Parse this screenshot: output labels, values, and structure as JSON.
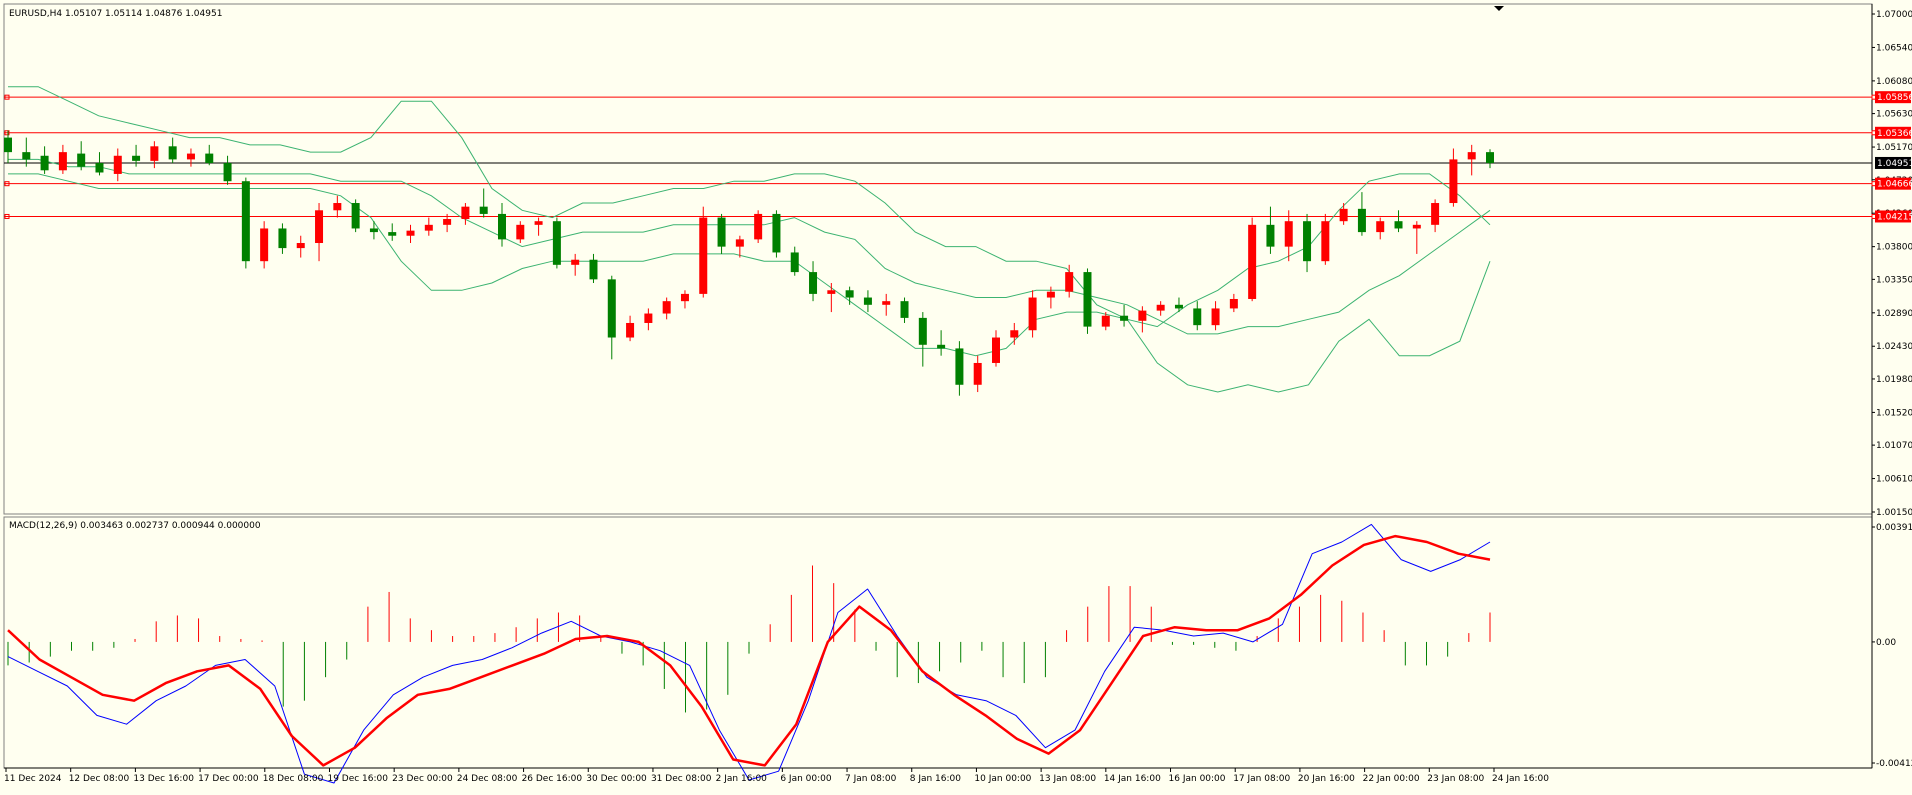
{
  "chart_data": [
    {
      "type": "candlestick",
      "panel": "price",
      "symbol_header": "EURUSD,H4  1.05107 1.05114 1.04876 1.04951",
      "ylim": [
        1.0015,
        1.07
      ],
      "yticks": [
        "1.07000",
        "1.06540",
        "1.06080",
        "1.05630",
        "1.05170",
        "1.04720",
        "1.04260",
        "1.03800",
        "1.03350",
        "1.02890",
        "1.02430",
        "1.01980",
        "1.01520",
        "1.01070",
        "1.00610",
        "1.00150"
      ],
      "current_price": {
        "label": "1.04951",
        "value": 1.04951,
        "color": "#000000"
      },
      "horizontal_lines": [
        {
          "label": "1.05856",
          "value": 1.05856,
          "color": "#ff0000"
        },
        {
          "label": "1.05366",
          "value": 1.05366,
          "color": "#ff0000"
        },
        {
          "label": "1.04666",
          "value": 1.04666,
          "color": "#ff0000"
        },
        {
          "label": "1.04215",
          "value": 1.04215,
          "color": "#ff0000"
        }
      ],
      "bollinger": {
        "color": "#3cb371",
        "upper": [
          1.06,
          1.06,
          1.058,
          1.056,
          1.055,
          1.054,
          1.053,
          1.053,
          1.052,
          1.052,
          1.051,
          1.051,
          1.053,
          1.058,
          1.058,
          1.053,
          1.046,
          1.043,
          1.042,
          1.044,
          1.044,
          1.045,
          1.046,
          1.046,
          1.047,
          1.047,
          1.048,
          1.048,
          1.047,
          1.044,
          1.04,
          1.038,
          1.038,
          1.036,
          1.036,
          1.035,
          1.03,
          1.028,
          1.027,
          1.03,
          1.032,
          1.035,
          1.036,
          1.038,
          1.043,
          1.047,
          1.048,
          1.048,
          1.045,
          1.041
        ],
        "middle": [
          1.05,
          1.05,
          1.049,
          1.049,
          1.048,
          1.048,
          1.048,
          1.048,
          1.048,
          1.048,
          1.048,
          1.047,
          1.047,
          1.047,
          1.045,
          1.042,
          1.04,
          1.038,
          1.039,
          1.04,
          1.04,
          1.04,
          1.041,
          1.041,
          1.041,
          1.041,
          1.042,
          1.04,
          1.039,
          1.035,
          1.033,
          1.032,
          1.031,
          1.031,
          1.032,
          1.032,
          1.031,
          1.03,
          1.028,
          1.026,
          1.026,
          1.027,
          1.027,
          1.028,
          1.029,
          1.032,
          1.034,
          1.037,
          1.04,
          1.043
        ],
        "lower": [
          1.048,
          1.048,
          1.047,
          1.046,
          1.046,
          1.046,
          1.046,
          1.046,
          1.046,
          1.046,
          1.046,
          1.045,
          1.042,
          1.036,
          1.032,
          1.032,
          1.033,
          1.035,
          1.036,
          1.036,
          1.036,
          1.036,
          1.037,
          1.037,
          1.037,
          1.036,
          1.036,
          1.033,
          1.03,
          1.027,
          1.024,
          1.024,
          1.023,
          1.024,
          1.028,
          1.029,
          1.029,
          1.028,
          1.022,
          1.019,
          1.018,
          1.019,
          1.018,
          1.019,
          1.025,
          1.028,
          1.023,
          1.023,
          1.025,
          1.036
        ]
      },
      "candles": [
        {
          "o": 1.053,
          "h": 1.054,
          "l": 1.0495,
          "c": 1.051
        },
        {
          "o": 1.051,
          "h": 1.053,
          "l": 1.049,
          "c": 1.05
        },
        {
          "o": 1.0505,
          "h": 1.0518,
          "l": 1.048,
          "c": 1.0485
        },
        {
          "o": 1.0485,
          "h": 1.052,
          "l": 1.048,
          "c": 1.051
        },
        {
          "o": 1.0508,
          "h": 1.0525,
          "l": 1.0485,
          "c": 1.049
        },
        {
          "o": 1.0495,
          "h": 1.051,
          "l": 1.0478,
          "c": 1.0482
        },
        {
          "o": 1.048,
          "h": 1.0515,
          "l": 1.047,
          "c": 1.0505
        },
        {
          "o": 1.0505,
          "h": 1.052,
          "l": 1.049,
          "c": 1.0498
        },
        {
          "o": 1.0498,
          "h": 1.0525,
          "l": 1.0488,
          "c": 1.0518
        },
        {
          "o": 1.0518,
          "h": 1.053,
          "l": 1.0495,
          "c": 1.05
        },
        {
          "o": 1.05,
          "h": 1.0515,
          "l": 1.049,
          "c": 1.0508
        },
        {
          "o": 1.0508,
          "h": 1.052,
          "l": 1.0492,
          "c": 1.0495
        },
        {
          "o": 1.0495,
          "h": 1.0505,
          "l": 1.0465,
          "c": 1.047
        },
        {
          "o": 1.047,
          "h": 1.0475,
          "l": 1.035,
          "c": 1.036
        },
        {
          "o": 1.036,
          "h": 1.0415,
          "l": 1.035,
          "c": 1.0405
        },
        {
          "o": 1.0405,
          "h": 1.0412,
          "l": 1.037,
          "c": 1.0378
        },
        {
          "o": 1.0378,
          "h": 1.0395,
          "l": 1.0365,
          "c": 1.0385
        },
        {
          "o": 1.0385,
          "h": 1.044,
          "l": 1.036,
          "c": 1.043
        },
        {
          "o": 1.043,
          "h": 1.045,
          "l": 1.042,
          "c": 1.044
        },
        {
          "o": 1.044,
          "h": 1.0445,
          "l": 1.04,
          "c": 1.0405
        },
        {
          "o": 1.0405,
          "h": 1.0415,
          "l": 1.039,
          "c": 1.04
        },
        {
          "o": 1.04,
          "h": 1.0412,
          "l": 1.0388,
          "c": 1.0395
        },
        {
          "o": 1.0395,
          "h": 1.041,
          "l": 1.0385,
          "c": 1.0402
        },
        {
          "o": 1.0402,
          "h": 1.042,
          "l": 1.0395,
          "c": 1.041
        },
        {
          "o": 1.041,
          "h": 1.0425,
          "l": 1.04,
          "c": 1.0418
        },
        {
          "o": 1.0418,
          "h": 1.044,
          "l": 1.041,
          "c": 1.0435
        },
        {
          "o": 1.0435,
          "h": 1.046,
          "l": 1.042,
          "c": 1.0425
        },
        {
          "o": 1.0425,
          "h": 1.044,
          "l": 1.038,
          "c": 1.039
        },
        {
          "o": 1.039,
          "h": 1.0415,
          "l": 1.0385,
          "c": 1.041
        },
        {
          "o": 1.041,
          "h": 1.042,
          "l": 1.0395,
          "c": 1.0415
        },
        {
          "o": 1.0415,
          "h": 1.042,
          "l": 1.035,
          "c": 1.0355
        },
        {
          "o": 1.0355,
          "h": 1.037,
          "l": 1.034,
          "c": 1.0362
        },
        {
          "o": 1.0362,
          "h": 1.037,
          "l": 1.033,
          "c": 1.0335
        },
        {
          "o": 1.0335,
          "h": 1.034,
          "l": 1.0225,
          "c": 1.0255
        },
        {
          "o": 1.0255,
          "h": 1.0285,
          "l": 1.025,
          "c": 1.0275
        },
        {
          "o": 1.0275,
          "h": 1.0295,
          "l": 1.0265,
          "c": 1.0288
        },
        {
          "o": 1.0288,
          "h": 1.031,
          "l": 1.028,
          "c": 1.0305
        },
        {
          "o": 1.0305,
          "h": 1.032,
          "l": 1.0295,
          "c": 1.0315
        },
        {
          "o": 1.0315,
          "h": 1.0435,
          "l": 1.031,
          "c": 1.042
        },
        {
          "o": 1.042,
          "h": 1.0425,
          "l": 1.037,
          "c": 1.038
        },
        {
          "o": 1.038,
          "h": 1.0395,
          "l": 1.0365,
          "c": 1.039
        },
        {
          "o": 1.039,
          "h": 1.043,
          "l": 1.0385,
          "c": 1.0425
        },
        {
          "o": 1.0425,
          "h": 1.043,
          "l": 1.0365,
          "c": 1.0372
        },
        {
          "o": 1.0372,
          "h": 1.038,
          "l": 1.034,
          "c": 1.0345
        },
        {
          "o": 1.0345,
          "h": 1.036,
          "l": 1.0305,
          "c": 1.0315
        },
        {
          "o": 1.0315,
          "h": 1.033,
          "l": 1.029,
          "c": 1.032
        },
        {
          "o": 1.032,
          "h": 1.0325,
          "l": 1.03,
          "c": 1.031
        },
        {
          "o": 1.031,
          "h": 1.032,
          "l": 1.029,
          "c": 1.03
        },
        {
          "o": 1.03,
          "h": 1.0315,
          "l": 1.0285,
          "c": 1.0305
        },
        {
          "o": 1.0305,
          "h": 1.031,
          "l": 1.0275,
          "c": 1.0282
        },
        {
          "o": 1.0282,
          "h": 1.029,
          "l": 1.0215,
          "c": 1.0245
        },
        {
          "o": 1.0245,
          "h": 1.0265,
          "l": 1.023,
          "c": 1.024
        },
        {
          "o": 1.024,
          "h": 1.025,
          "l": 1.0175,
          "c": 1.019
        },
        {
          "o": 1.019,
          "h": 1.023,
          "l": 1.018,
          "c": 1.022
        },
        {
          "o": 1.022,
          "h": 1.0265,
          "l": 1.0215,
          "c": 1.0255
        },
        {
          "o": 1.0255,
          "h": 1.0275,
          "l": 1.0245,
          "c": 1.0265
        },
        {
          "o": 1.0265,
          "h": 1.032,
          "l": 1.0255,
          "c": 1.031
        },
        {
          "o": 1.031,
          "h": 1.0325,
          "l": 1.0295,
          "c": 1.0318
        },
        {
          "o": 1.0318,
          "h": 1.0355,
          "l": 1.031,
          "c": 1.0345
        },
        {
          "o": 1.0345,
          "h": 1.035,
          "l": 1.026,
          "c": 1.027
        },
        {
          "o": 1.027,
          "h": 1.029,
          "l": 1.0265,
          "c": 1.0285
        },
        {
          "o": 1.0285,
          "h": 1.03,
          "l": 1.027,
          "c": 1.0278
        },
        {
          "o": 1.0278,
          "h": 1.0298,
          "l": 1.0262,
          "c": 1.0292
        },
        {
          "o": 1.0292,
          "h": 1.0305,
          "l": 1.0285,
          "c": 1.03
        },
        {
          "o": 1.03,
          "h": 1.031,
          "l": 1.029,
          "c": 1.0295
        },
        {
          "o": 1.0295,
          "h": 1.0305,
          "l": 1.0265,
          "c": 1.0272
        },
        {
          "o": 1.0272,
          "h": 1.0305,
          "l": 1.0265,
          "c": 1.0295
        },
        {
          "o": 1.0295,
          "h": 1.0315,
          "l": 1.029,
          "c": 1.0308
        },
        {
          "o": 1.0308,
          "h": 1.042,
          "l": 1.0305,
          "c": 1.041
        },
        {
          "o": 1.041,
          "h": 1.0435,
          "l": 1.037,
          "c": 1.038
        },
        {
          "o": 1.038,
          "h": 1.043,
          "l": 1.036,
          "c": 1.0415
        },
        {
          "o": 1.0415,
          "h": 1.0425,
          "l": 1.0345,
          "c": 1.036
        },
        {
          "o": 1.036,
          "h": 1.0425,
          "l": 1.0355,
          "c": 1.0415
        },
        {
          "o": 1.0415,
          "h": 1.044,
          "l": 1.041,
          "c": 1.0432
        },
        {
          "o": 1.0432,
          "h": 1.0455,
          "l": 1.0395,
          "c": 1.04
        },
        {
          "o": 1.04,
          "h": 1.042,
          "l": 1.039,
          "c": 1.0415
        },
        {
          "o": 1.0415,
          "h": 1.043,
          "l": 1.04,
          "c": 1.0405
        },
        {
          "o": 1.0405,
          "h": 1.0415,
          "l": 1.037,
          "c": 1.041
        },
        {
          "o": 1.041,
          "h": 1.0445,
          "l": 1.04,
          "c": 1.044
        },
        {
          "o": 1.044,
          "h": 1.0515,
          "l": 1.0435,
          "c": 1.05
        },
        {
          "o": 1.05,
          "h": 1.052,
          "l": 1.0478,
          "c": 1.051
        },
        {
          "o": 1.051,
          "h": 1.0514,
          "l": 1.0488,
          "c": 1.0495
        }
      ]
    },
    {
      "type": "macd",
      "panel": "indicator",
      "header": "MACD(12,26,9) 0.003463 0.002737 0.000944 0.000000",
      "ylim": [
        -0.00412,
        0.00391
      ],
      "yticks": [
        "0.00391",
        "0.00",
        "-0.00412"
      ],
      "histogram_colors": {
        "up": "#ff0000",
        "down": "#008000"
      },
      "macd_color": "#0000ff",
      "signal_color": "#ff0000",
      "histogram": [
        -0.0008,
        -0.0007,
        -0.0005,
        -0.0003,
        -0.0003,
        -0.0002,
        0.0001,
        0.0007,
        0.0009,
        0.0008,
        0.0002,
        0.0001,
        5e-05,
        -0.0022,
        -0.002,
        -0.0012,
        -0.0006,
        0.0012,
        0.0017,
        0.0008,
        0.0004,
        0.0002,
        0.0002,
        0.0003,
        0.0005,
        0.0008,
        0.001,
        0.0009,
        0.0002,
        -0.0004,
        -0.0008,
        -0.0016,
        -0.0024,
        -0.0023,
        -0.0018,
        -0.0004,
        0.0006,
        0.0016,
        0.0026,
        0.002,
        0.0011,
        -0.0003,
        -0.0012,
        -0.0014,
        -0.001,
        -0.0007,
        -0.0003,
        -0.0012,
        -0.0014,
        -0.0012,
        0.0004,
        0.0012,
        0.0019,
        0.0019,
        0.0012,
        -0.0001,
        -0.0001,
        -0.0002,
        -0.0003,
        0.0002,
        0.0008,
        0.0012,
        0.0016,
        0.0014,
        0.001,
        0.0004,
        -0.0008,
        -0.0008,
        -0.0005,
        0.0003,
        0.001
      ],
      "macd": [
        -0.0005,
        -0.001,
        -0.0015,
        -0.0025,
        -0.0028,
        -0.002,
        -0.0015,
        -0.0008,
        -0.0006,
        -0.0015,
        -0.0045,
        -0.0048,
        -0.003,
        -0.0018,
        -0.0012,
        -0.0008,
        -0.0006,
        -0.0002,
        0.0003,
        0.0007,
        0.0002,
        0.0,
        -0.0003,
        -0.0008,
        -0.003,
        -0.0047,
        -0.0044,
        -0.002,
        0.001,
        0.0018,
        0.0002,
        -0.0012,
        -0.0018,
        -0.002,
        -0.0025,
        -0.0036,
        -0.003,
        -0.001,
        0.0005,
        0.0004,
        0.0002,
        0.0003,
        0.0,
        0.0006,
        0.003,
        0.0034,
        0.004,
        0.0028,
        0.0024,
        0.0028,
        0.0034
      ],
      "signal": [
        0.0004,
        -0.0006,
        -0.0012,
        -0.0018,
        -0.002,
        -0.0014,
        -0.001,
        -0.0008,
        -0.0016,
        -0.0032,
        -0.0042,
        -0.0036,
        -0.0026,
        -0.0018,
        -0.0016,
        -0.0012,
        -0.0008,
        -0.0004,
        0.0001,
        0.0002,
        0.0,
        -0.0008,
        -0.0022,
        -0.004,
        -0.0042,
        -0.0028,
        0.0,
        0.0012,
        0.0004,
        -0.001,
        -0.0018,
        -0.0025,
        -0.0033,
        -0.0038,
        -0.003,
        -0.0014,
        0.0002,
        0.0005,
        0.0004,
        0.0004,
        0.0008,
        0.0016,
        0.0026,
        0.0033,
        0.0036,
        0.0034,
        0.003,
        0.0028
      ]
    }
  ],
  "time_axis": [
    "11 Dec 2024",
    "12 Dec 08:00",
    "13 Dec 16:00",
    "17 Dec 00:00",
    "18 Dec 08:00",
    "19 Dec 16:00",
    "23 Dec 00:00",
    "24 Dec 08:00",
    "26 Dec 16:00",
    "30 Dec 00:00",
    "31 Dec 08:00",
    "2 Jan 16:00",
    "6 Jan 00:00",
    "7 Jan 08:00",
    "8 Jan 16:00",
    "10 Jan 00:00",
    "13 Jan 08:00",
    "14 Jan 16:00",
    "16 Jan 00:00",
    "17 Jan 08:00",
    "20 Jan 16:00",
    "22 Jan 00:00",
    "23 Jan 08:00",
    "24 Jan 16:00"
  ],
  "colors": {
    "background": "#fffff0",
    "bull": "#ff0000",
    "bear": "#008000",
    "axis": "#000000"
  }
}
